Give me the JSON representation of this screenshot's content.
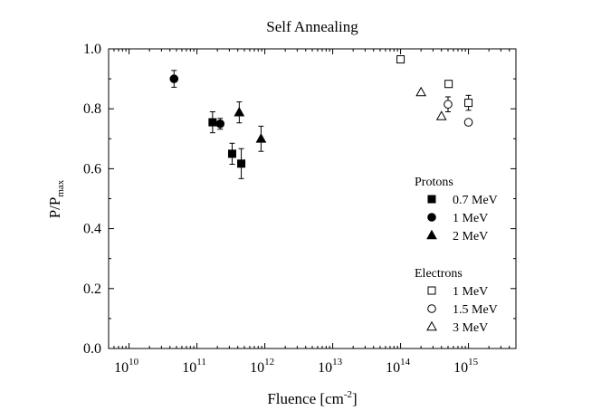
{
  "chart_data": {
    "type": "scatter",
    "title": "Self Annealing",
    "xlabel": {
      "base": "Fluence [cm",
      "sup": "-2",
      "end": "]"
    },
    "ylabel": {
      "base": "P/P",
      "sub": "max"
    },
    "xscale": "log",
    "xlim": [
      5000000000.0,
      5000000000000000.0
    ],
    "ylim": [
      0.0,
      1.0
    ],
    "xticks": [
      {
        "value": 10000000000.0,
        "base": "10",
        "exp": "10"
      },
      {
        "value": 100000000000.0,
        "base": "10",
        "exp": "11"
      },
      {
        "value": 1000000000000.0,
        "base": "10",
        "exp": "12"
      },
      {
        "value": 10000000000000.0,
        "base": "10",
        "exp": "13"
      },
      {
        "value": 100000000000000.0,
        "base": "10",
        "exp": "14"
      },
      {
        "value": 1000000000000000.0,
        "base": "10",
        "exp": "15"
      }
    ],
    "yticks": [
      {
        "value": 0.0,
        "label": "0.0"
      },
      {
        "value": 0.2,
        "label": "0.2"
      },
      {
        "value": 0.4,
        "label": "0.4"
      },
      {
        "value": 0.6,
        "label": "0.6"
      },
      {
        "value": 0.8,
        "label": "0.8"
      },
      {
        "value": 1.0,
        "label": "1.0"
      }
    ],
    "legend": {
      "position": "right",
      "groups": [
        {
          "title": "Protons",
          "entries": [
            {
              "label": "0.7 MeV",
              "series": 0
            },
            {
              "label": "1 MeV",
              "series": 1
            },
            {
              "label": "2 MeV",
              "series": 2
            }
          ]
        },
        {
          "title": "Electrons",
          "entries": [
            {
              "label": "1 MeV",
              "series": 3
            },
            {
              "label": "1.5 MeV",
              "series": 4
            },
            {
              "label": "3 MeV",
              "series": 5
            }
          ]
        }
      ]
    },
    "series": [
      {
        "name": "Protons 0.7 MeV",
        "marker": "square",
        "filled": true,
        "points": [
          {
            "x": 170000000000.0,
            "y": 0.755,
            "err": 0.035
          },
          {
            "x": 330000000000.0,
            "y": 0.65,
            "err": 0.035
          },
          {
            "x": 450000000000.0,
            "y": 0.617,
            "err": 0.05
          }
        ]
      },
      {
        "name": "Protons 1 MeV",
        "marker": "circle",
        "filled": true,
        "points": [
          {
            "x": 46000000000.0,
            "y": 0.9,
            "err": 0.028
          },
          {
            "x": 220000000000.0,
            "y": 0.75,
            "err": 0.018
          }
        ]
      },
      {
        "name": "Protons 2 MeV",
        "marker": "triangle",
        "filled": true,
        "points": [
          {
            "x": 420000000000.0,
            "y": 0.788,
            "err": 0.035
          },
          {
            "x": 880000000000.0,
            "y": 0.7,
            "err": 0.042
          }
        ]
      },
      {
        "name": "Electrons 1 MeV",
        "marker": "square",
        "filled": false,
        "points": [
          {
            "x": 100000000000000.0,
            "y": 0.965,
            "err": 0
          },
          {
            "x": 510000000000000.0,
            "y": 0.883,
            "err": 0
          },
          {
            "x": 1000000000000000.0,
            "y": 0.82,
            "err": 0.025
          }
        ]
      },
      {
        "name": "Electrons 1.5 MeV",
        "marker": "circle",
        "filled": false,
        "points": [
          {
            "x": 500000000000000.0,
            "y": 0.815,
            "err": 0.025
          },
          {
            "x": 1000000000000000.0,
            "y": 0.755,
            "err": 0
          }
        ]
      },
      {
        "name": "Electrons 3 MeV",
        "marker": "triangle",
        "filled": false,
        "points": [
          {
            "x": 200000000000000.0,
            "y": 0.855,
            "err": 0
          },
          {
            "x": 400000000000000.0,
            "y": 0.775,
            "err": 0
          }
        ]
      }
    ]
  }
}
